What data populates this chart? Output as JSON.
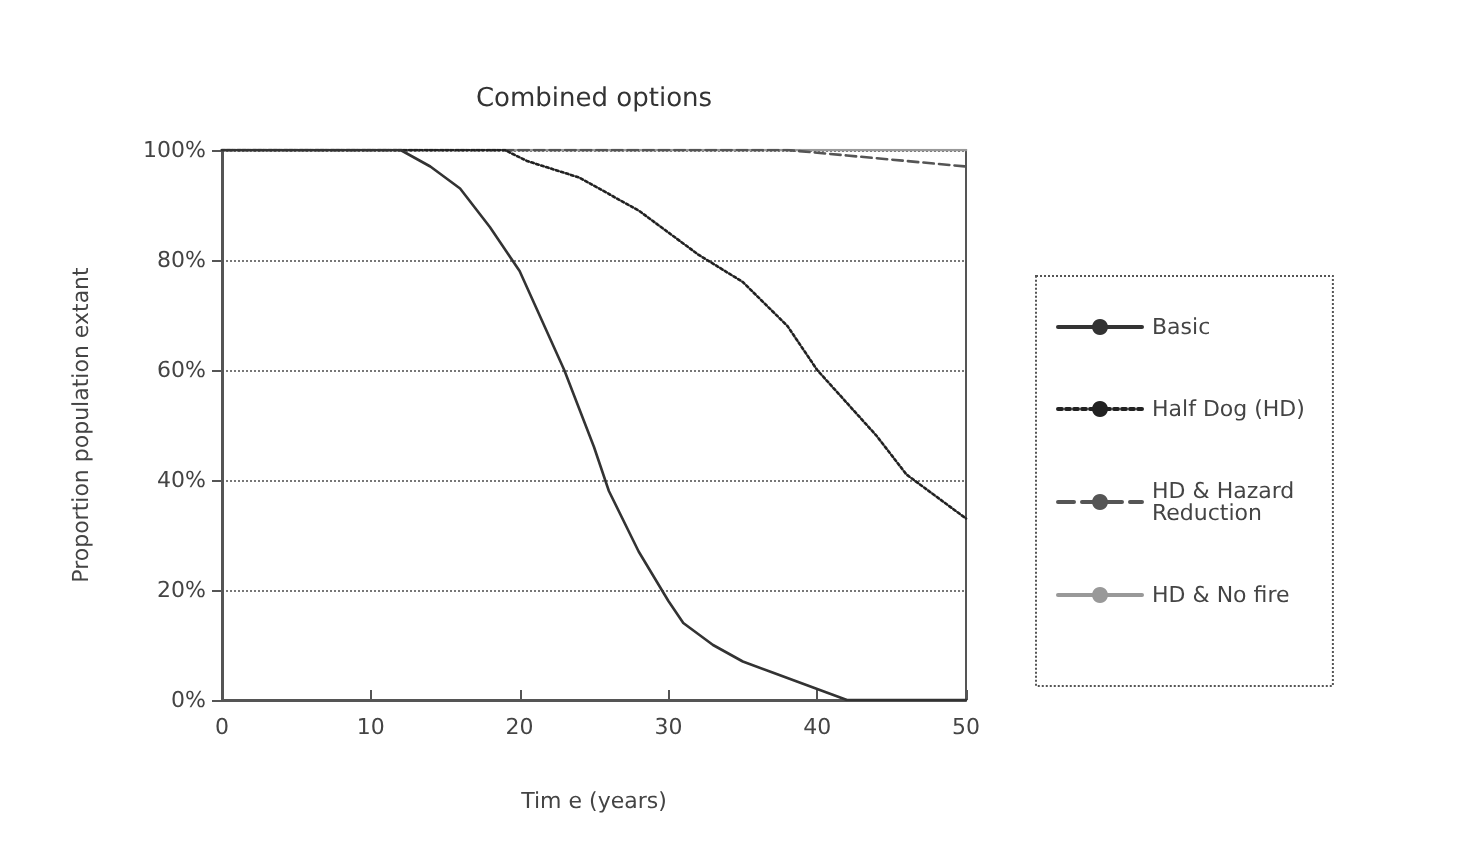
{
  "chart_data": {
    "type": "line",
    "title": "Combined options",
    "xlabel": "Tim e (years)",
    "ylabel": "Proportion population extant",
    "xlim": [
      0,
      50
    ],
    "xticks": [
      0,
      10,
      20,
      30,
      40,
      50
    ],
    "ylim": [
      0,
      100
    ],
    "yticks": [
      {
        "value": 0,
        "label": "0%"
      },
      {
        "value": 20,
        "label": "20%"
      },
      {
        "value": 40,
        "label": "40%"
      },
      {
        "value": 60,
        "label": "60%"
      },
      {
        "value": 80,
        "label": "80%"
      },
      {
        "value": 100,
        "label": "100%"
      }
    ],
    "grid": "y",
    "legend": "right",
    "marker": "none",
    "series": [
      {
        "name": "Basic",
        "color": "#333333",
        "line_style": "solid",
        "x": [
          0,
          12,
          14,
          16,
          18,
          20,
          21,
          23,
          25,
          26,
          28,
          30,
          31,
          33,
          35,
          37,
          39,
          41,
          42,
          50
        ],
        "values": [
          100,
          100,
          97,
          93,
          86,
          78,
          72,
          60,
          46,
          38,
          27,
          18,
          14,
          10,
          7,
          5,
          3,
          1,
          0,
          0
        ]
      },
      {
        "name": "Half Dog (HD)",
        "color": "#222222",
        "line_style": "dotted",
        "x": [
          0,
          19,
          20.5,
          24,
          28,
          32,
          35,
          38,
          40,
          42,
          44,
          46,
          48,
          50
        ],
        "values": [
          100,
          100,
          98,
          95,
          89,
          81,
          76,
          68,
          60,
          54,
          48,
          41,
          37,
          33
        ]
      },
      {
        "name": "HD & Hazard Reduction",
        "color": "#555555",
        "line_style": "dashed",
        "x": [
          0,
          38,
          42,
          46,
          50
        ],
        "values": [
          100,
          100,
          99,
          98,
          97
        ]
      },
      {
        "name": "HD & No fire",
        "color": "#999999",
        "line_style": "solid",
        "x": [
          0,
          50
        ],
        "values": [
          100,
          100
        ]
      }
    ]
  }
}
